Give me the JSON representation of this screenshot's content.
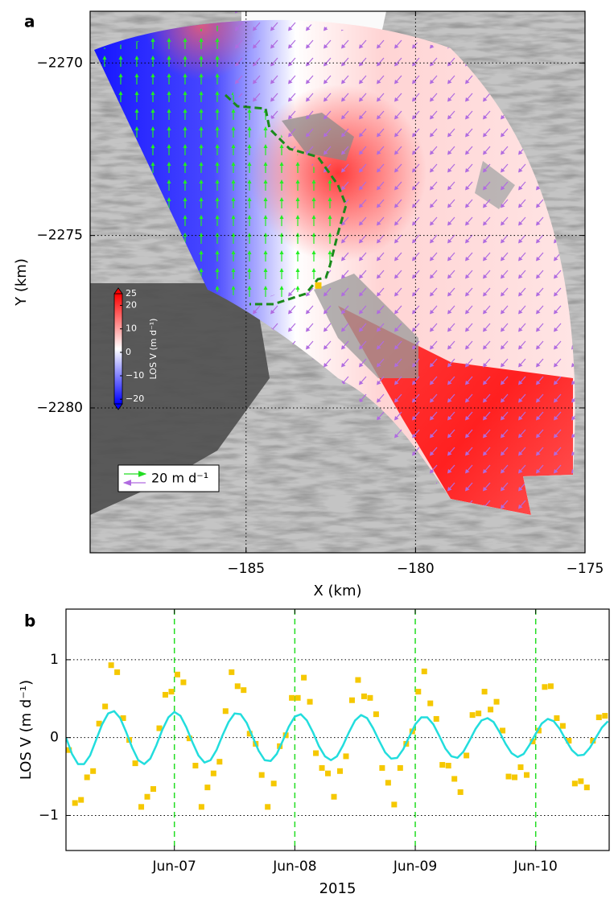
{
  "chart_data": [
    {
      "type": "map",
      "panel_label": "a",
      "xlabel": "X (km)",
      "ylabel": "Y (km)",
      "xlim": [
        -189.6,
        -175
      ],
      "ylim": [
        -2284.2,
        -2268.5
      ],
      "xticks": [
        {
          "value": -185,
          "label": "−185"
        },
        {
          "value": -180,
          "label": "−180"
        },
        {
          "value": -175,
          "label": "−175"
        }
      ],
      "yticks": [
        {
          "value": -2280,
          "label": "−2280"
        },
        {
          "value": -2275,
          "label": "−2275"
        },
        {
          "value": -2270,
          "label": "−2270"
        }
      ],
      "grid": "both",
      "colorbar": {
        "label": "LOS V (m d⁻¹)",
        "lim": [
          -22,
          25
        ],
        "ticks": [
          {
            "value": -20,
            "label": "−20"
          },
          {
            "value": -10,
            "label": "−10"
          },
          0,
          10,
          20,
          25
        ],
        "colors": [
          "#0000ff",
          "#ffffff",
          "#ff0000"
        ]
      },
      "vector_legend": {
        "label": "20 m d⁻¹",
        "colors": [
          "#22dd22",
          "#b06be0"
        ]
      },
      "marker": {
        "x": -182.87,
        "y": -2276.45,
        "color": "#f5c800"
      }
    },
    {
      "type": "scatter",
      "panel_label": "b",
      "xlabel": "2015",
      "ylabel": "LOS V (m d⁻¹)",
      "xlim": [
        6.1,
        10.61
      ],
      "ylim": [
        -1.45,
        1.65
      ],
      "xticks": [
        {
          "value": 7,
          "label": "Jun-07"
        },
        {
          "value": 8,
          "label": "Jun-08"
        },
        {
          "value": 9,
          "label": "Jun-09"
        },
        {
          "value": 10,
          "label": "Jun-10"
        }
      ],
      "yticks": [
        {
          "value": -1,
          "label": "−1"
        },
        0,
        1
      ],
      "grid": "y",
      "vlines": [
        7,
        8,
        9,
        10
      ],
      "vline_color": "#22dd22",
      "series": [
        {
          "type": "scatter",
          "color": "#f5c800",
          "x": [
            6.125,
            6.175,
            6.225,
            6.275,
            6.325,
            6.375,
            6.425,
            6.475,
            6.525,
            6.575,
            6.625,
            6.675,
            6.725,
            6.775,
            6.825,
            6.875,
            6.925,
            6.975,
            7.025,
            7.075,
            7.125,
            7.175,
            7.225,
            7.275,
            7.325,
            7.375,
            7.425,
            7.475,
            7.525,
            7.575,
            7.625,
            7.675,
            7.725,
            7.775,
            7.825,
            7.875,
            7.925,
            7.975,
            8.025,
            8.075,
            8.125,
            8.175,
            8.225,
            8.275,
            8.325,
            8.375,
            8.425,
            8.475,
            8.525,
            8.575,
            8.625,
            8.675,
            8.725,
            8.775,
            8.825,
            8.875,
            8.925,
            8.975,
            9.025,
            9.075,
            9.125,
            9.175,
            9.225,
            9.275,
            9.325,
            9.375,
            9.425,
            9.475,
            9.525,
            9.575,
            9.625,
            9.675,
            9.725,
            9.775,
            9.825,
            9.875,
            9.925,
            9.975,
            10.025,
            10.075,
            10.125,
            10.175,
            10.225,
            10.275,
            10.325,
            10.375,
            10.425,
            10.475,
            10.525,
            10.575
          ],
          "values": [
            -0.16,
            -0.84,
            -0.8,
            -0.51,
            -0.43,
            0.18,
            0.4,
            0.93,
            0.84,
            0.25,
            -0.03,
            -0.33,
            -0.89,
            -0.76,
            -0.66,
            0.12,
            0.55,
            0.59,
            0.81,
            0.71,
            -0.01,
            -0.36,
            -0.89,
            -0.64,
            -0.46,
            -0.31,
            0.34,
            0.84,
            0.66,
            0.61,
            0.05,
            -0.08,
            -0.48,
            -0.89,
            -0.59,
            -0.11,
            0.03,
            0.51,
            0.51,
            0.77,
            0.46,
            -0.2,
            -0.39,
            -0.46,
            -0.76,
            -0.43,
            -0.24,
            0.48,
            0.74,
            0.53,
            0.51,
            0.3,
            -0.39,
            -0.58,
            -0.86,
            -0.39,
            -0.08,
            0.08,
            0.59,
            0.85,
            0.44,
            0.24,
            -0.35,
            -0.36,
            -0.53,
            -0.7,
            -0.23,
            0.29,
            0.31,
            0.59,
            0.36,
            0.46,
            0.09,
            -0.5,
            -0.51,
            -0.38,
            -0.48,
            -0.05,
            0.09,
            0.65,
            0.66,
            0.25,
            0.15,
            -0.04,
            -0.59,
            -0.56,
            -0.64,
            -0.04,
            0.26,
            0.28
          ]
        },
        {
          "type": "line",
          "color": "#22dddd",
          "x": [
            6.1,
            6.15,
            6.2,
            6.25,
            6.3,
            6.35,
            6.4,
            6.45,
            6.5,
            6.55,
            6.6,
            6.65,
            6.7,
            6.75,
            6.8,
            6.85,
            6.9,
            6.95,
            7.0,
            7.05,
            7.1,
            7.15,
            7.2,
            7.25,
            7.3,
            7.35,
            7.4,
            7.45,
            7.5,
            7.55,
            7.6,
            7.65,
            7.7,
            7.75,
            7.8,
            7.85,
            7.9,
            7.95,
            8.0,
            8.05,
            8.1,
            8.15,
            8.2,
            8.25,
            8.3,
            8.35,
            8.4,
            8.45,
            8.5,
            8.55,
            8.6,
            8.65,
            8.7,
            8.75,
            8.8,
            8.85,
            8.9,
            8.95,
            9.0,
            9.05,
            9.1,
            9.15,
            9.2,
            9.25,
            9.3,
            9.35,
            9.4,
            9.45,
            9.5,
            9.55,
            9.6,
            9.65,
            9.7,
            9.75,
            9.8,
            9.85,
            9.9,
            9.95,
            10.0,
            10.05,
            10.1,
            10.15,
            10.2,
            10.25,
            10.3,
            10.35,
            10.4,
            10.45,
            10.5,
            10.55,
            10.6
          ],
          "values": [
            0.0,
            -0.21,
            -0.34,
            -0.34,
            -0.23,
            -0.03,
            0.17,
            0.31,
            0.34,
            0.25,
            0.07,
            -0.13,
            -0.29,
            -0.34,
            -0.27,
            -0.1,
            0.1,
            0.26,
            0.33,
            0.28,
            0.13,
            -0.06,
            -0.23,
            -0.32,
            -0.29,
            -0.16,
            0.03,
            0.2,
            0.31,
            0.3,
            0.19,
            0.01,
            -0.17,
            -0.29,
            -0.3,
            -0.21,
            -0.04,
            0.14,
            0.27,
            0.3,
            0.22,
            0.07,
            -0.11,
            -0.24,
            -0.29,
            -0.24,
            -0.1,
            0.07,
            0.22,
            0.29,
            0.25,
            0.12,
            -0.04,
            -0.19,
            -0.27,
            -0.26,
            -0.15,
            0.01,
            0.17,
            0.26,
            0.26,
            0.17,
            0.02,
            -0.14,
            -0.24,
            -0.26,
            -0.18,
            -0.04,
            0.11,
            0.22,
            0.25,
            0.2,
            0.07,
            -0.08,
            -0.2,
            -0.25,
            -0.21,
            -0.09,
            0.05,
            0.18,
            0.24,
            0.21,
            0.11,
            -0.03,
            -0.16,
            -0.23,
            -0.22,
            -0.13,
            0.0,
            0.13,
            0.21
          ]
        }
      ]
    }
  ]
}
